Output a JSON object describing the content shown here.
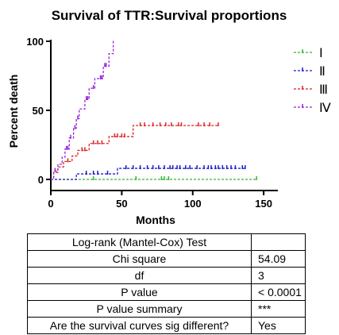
{
  "chart_data": {
    "type": "line",
    "step": true,
    "title": "Survival of TTR:Survival proportions",
    "xlabel": "Months",
    "ylabel": "Percent death",
    "xlim": [
      0,
      160
    ],
    "ylim": [
      0,
      100
    ],
    "xticks": [
      0,
      50,
      100,
      150
    ],
    "yticks": [
      0,
      50,
      100
    ],
    "grid": false,
    "legend_position": "right",
    "series": [
      {
        "name": "Ⅰ",
        "color": "#2db82d",
        "steps": [
          [
            0,
            0
          ],
          [
            145,
            0
          ]
        ],
        "censored_x": [
          30,
          60,
          78,
          80,
          83,
          145
        ]
      },
      {
        "name": "Ⅱ",
        "color": "#1a1acc",
        "steps": [
          [
            0,
            0
          ],
          [
            18,
            0
          ],
          [
            18,
            4
          ],
          [
            47,
            4
          ],
          [
            47,
            8
          ],
          [
            137,
            8
          ]
        ],
        "censored_x": [
          25,
          30,
          33,
          40,
          53,
          58,
          63,
          68,
          72,
          76,
          80,
          84,
          86,
          89,
          91,
          95,
          98,
          103,
          108,
          111,
          113,
          116,
          118,
          121,
          124,
          127,
          130,
          135,
          137
        ]
      },
      {
        "name": "Ⅲ",
        "color": "#dd2222",
        "steps": [
          [
            0,
            0
          ],
          [
            2,
            0
          ],
          [
            2,
            5
          ],
          [
            5,
            5
          ],
          [
            5,
            9
          ],
          [
            9,
            9
          ],
          [
            9,
            13
          ],
          [
            15,
            13
          ],
          [
            15,
            17
          ],
          [
            19,
            17
          ],
          [
            19,
            21
          ],
          [
            27,
            21
          ],
          [
            27,
            26
          ],
          [
            41,
            26
          ],
          [
            41,
            31
          ],
          [
            58,
            31
          ],
          [
            58,
            39
          ],
          [
            118,
            39
          ]
        ],
        "censored_x": [
          12,
          22,
          24,
          30,
          33,
          36,
          45,
          47,
          50,
          52,
          63,
          66,
          72,
          77,
          81,
          85,
          90,
          92,
          104,
          108,
          112,
          118
        ]
      },
      {
        "name": "Ⅳ",
        "color": "#9922dd",
        "steps": [
          [
            0,
            0
          ],
          [
            2,
            0
          ],
          [
            2,
            6
          ],
          [
            5,
            6
          ],
          [
            5,
            11
          ],
          [
            8,
            11
          ],
          [
            8,
            16
          ],
          [
            10,
            16
          ],
          [
            10,
            22
          ],
          [
            13,
            22
          ],
          [
            13,
            30
          ],
          [
            16,
            30
          ],
          [
            16,
            37
          ],
          [
            18,
            37
          ],
          [
            18,
            44
          ],
          [
            20,
            44
          ],
          [
            20,
            51
          ],
          [
            24,
            51
          ],
          [
            24,
            58
          ],
          [
            27,
            58
          ],
          [
            27,
            66
          ],
          [
            31,
            66
          ],
          [
            31,
            73
          ],
          [
            37,
            73
          ],
          [
            37,
            82
          ],
          [
            41,
            82
          ],
          [
            41,
            91
          ],
          [
            44,
            91
          ],
          [
            44,
            100
          ],
          [
            45,
            100
          ]
        ],
        "censored_x": [
          3,
          11,
          12,
          14,
          17,
          19,
          25,
          26,
          30,
          35,
          36,
          38,
          39
        ]
      }
    ]
  },
  "table": {
    "rows": [
      {
        "label": "Log-rank (Mantel-Cox) Test",
        "value": ""
      },
      {
        "label": "Chi square",
        "value": "54.09"
      },
      {
        "label": "df",
        "value": "3"
      },
      {
        "label": "P value",
        "value": "< 0.0001"
      },
      {
        "label": "P value summary",
        "value": "***"
      },
      {
        "label": "Are the survival curves sig different?",
        "value": "Yes"
      }
    ]
  }
}
